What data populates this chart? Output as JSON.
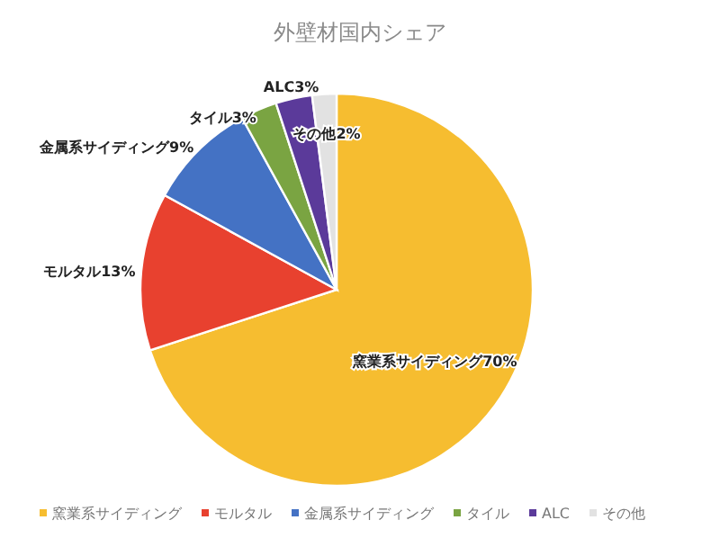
{
  "chart_data": {
    "type": "pie",
    "title": "外壁材国内シェア",
    "categories": [
      "窯業系サイディング",
      "モルタル",
      "金属系サイディング",
      "タイル",
      "ALC",
      "その他"
    ],
    "values": [
      70,
      13,
      9,
      3,
      3,
      2
    ],
    "colors": [
      "#f6bd30",
      "#e8412f",
      "#4472c4",
      "#7aa442",
      "#5b3a9a",
      "#e2e2e2"
    ],
    "value_labels": [
      "窯業系サイディング70%",
      "モルタル13%",
      "金属系サイディング9%",
      "タイル3%",
      "ALC3%",
      "その他2%"
    ],
    "legend": "bottom"
  }
}
